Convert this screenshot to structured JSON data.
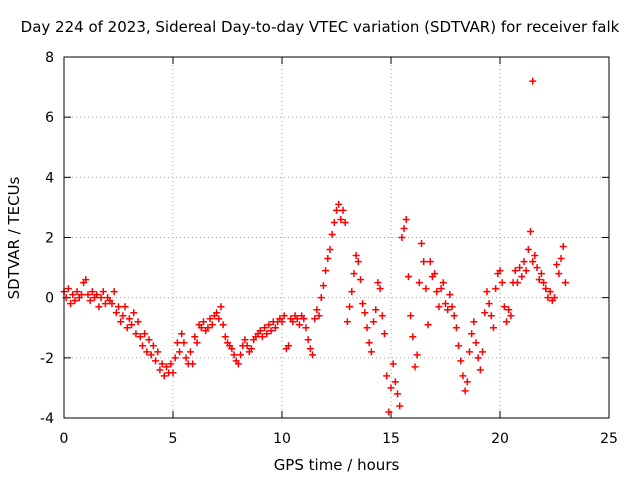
{
  "chart_data": {
    "type": "scatter",
    "title": "Day 224 of 2023, Sidereal Day-to-day VTEC variation (SDTVAR) for receiver falk",
    "xlabel": "GPS time / hours",
    "ylabel": "SDTVAR / TECUs",
    "xlim": [
      0,
      25
    ],
    "ylim": [
      -4,
      8
    ],
    "xticks": [
      0,
      5,
      10,
      15,
      20,
      25
    ],
    "yticks": [
      -4,
      -2,
      0,
      2,
      4,
      6,
      8
    ],
    "grid": true,
    "marker": "+",
    "color": "#ff0000",
    "series": [
      {
        "name": "SDTVAR",
        "points": [
          [
            0.0,
            0.2
          ],
          [
            0.1,
            0.0
          ],
          [
            0.2,
            0.3
          ],
          [
            0.3,
            -0.2
          ],
          [
            0.4,
            0.1
          ],
          [
            0.5,
            -0.1
          ],
          [
            0.6,
            0.2
          ],
          [
            0.7,
            0.0
          ],
          [
            0.8,
            0.1
          ],
          [
            0.9,
            0.5
          ],
          [
            1.0,
            0.6
          ],
          [
            1.1,
            0.1
          ],
          [
            1.2,
            -0.1
          ],
          [
            1.3,
            0.2
          ],
          [
            1.4,
            0.0
          ],
          [
            1.5,
            0.1
          ],
          [
            1.6,
            -0.3
          ],
          [
            1.7,
            0.0
          ],
          [
            1.8,
            0.2
          ],
          [
            1.9,
            -0.2
          ],
          [
            2.0,
            0.0
          ],
          [
            2.1,
            -0.1
          ],
          [
            2.2,
            -0.2
          ],
          [
            2.3,
            0.2
          ],
          [
            2.4,
            -0.5
          ],
          [
            2.5,
            -0.3
          ],
          [
            2.6,
            -0.8
          ],
          [
            2.7,
            -0.6
          ],
          [
            2.8,
            -0.3
          ],
          [
            2.9,
            -1.0
          ],
          [
            3.0,
            -0.7
          ],
          [
            3.1,
            -0.9
          ],
          [
            3.2,
            -0.5
          ],
          [
            3.3,
            -1.2
          ],
          [
            3.4,
            -0.8
          ],
          [
            3.5,
            -1.3
          ],
          [
            3.6,
            -1.6
          ],
          [
            3.7,
            -1.2
          ],
          [
            3.8,
            -1.8
          ],
          [
            3.9,
            -1.4
          ],
          [
            4.0,
            -1.9
          ],
          [
            4.1,
            -1.6
          ],
          [
            4.2,
            -2.1
          ],
          [
            4.3,
            -1.8
          ],
          [
            4.4,
            -2.4
          ],
          [
            4.5,
            -2.2
          ],
          [
            4.6,
            -2.6
          ],
          [
            4.7,
            -2.3
          ],
          [
            4.8,
            -2.5
          ],
          [
            4.9,
            -2.2
          ],
          [
            5.0,
            -2.5
          ],
          [
            5.1,
            -2.0
          ],
          [
            5.2,
            -1.5
          ],
          [
            5.3,
            -1.8
          ],
          [
            5.4,
            -1.2
          ],
          [
            5.5,
            -1.5
          ],
          [
            5.6,
            -2.0
          ],
          [
            5.7,
            -2.2
          ],
          [
            5.8,
            -1.8
          ],
          [
            5.9,
            -2.2
          ],
          [
            6.0,
            -1.3
          ],
          [
            6.1,
            -1.5
          ],
          [
            6.2,
            -0.9
          ],
          [
            6.3,
            -1.0
          ],
          [
            6.4,
            -0.8
          ],
          [
            6.5,
            -1.1
          ],
          [
            6.6,
            -1.0
          ],
          [
            6.7,
            -0.7
          ],
          [
            6.8,
            -0.9
          ],
          [
            6.9,
            -0.6
          ],
          [
            7.0,
            -0.5
          ],
          [
            7.1,
            -0.7
          ],
          [
            7.2,
            -0.3
          ],
          [
            7.3,
            -0.9
          ],
          [
            7.4,
            -1.3
          ],
          [
            7.5,
            -1.5
          ],
          [
            7.6,
            -1.6
          ],
          [
            7.7,
            -1.7
          ],
          [
            7.8,
            -1.9
          ],
          [
            7.9,
            -2.1
          ],
          [
            8.0,
            -2.2
          ],
          [
            8.1,
            -1.9
          ],
          [
            8.2,
            -1.6
          ],
          [
            8.3,
            -1.4
          ],
          [
            8.4,
            -1.6
          ],
          [
            8.5,
            -1.8
          ],
          [
            8.6,
            -1.7
          ],
          [
            8.7,
            -1.4
          ],
          [
            8.8,
            -1.3
          ],
          [
            8.9,
            -1.2
          ],
          [
            9.0,
            -1.1
          ],
          [
            9.1,
            -1.3
          ],
          [
            9.2,
            -1.0
          ],
          [
            9.3,
            -1.2
          ],
          [
            9.4,
            -0.9
          ],
          [
            9.5,
            -1.1
          ],
          [
            9.6,
            -0.8
          ],
          [
            9.7,
            -1.0
          ],
          [
            9.8,
            -0.8
          ],
          [
            9.9,
            -0.7
          ],
          [
            10.0,
            -0.8
          ],
          [
            10.1,
            -0.6
          ],
          [
            10.2,
            -1.7
          ],
          [
            10.3,
            -1.6
          ],
          [
            10.4,
            -0.7
          ],
          [
            10.5,
            -0.8
          ],
          [
            10.6,
            -0.6
          ],
          [
            10.7,
            -0.7
          ],
          [
            10.8,
            -0.9
          ],
          [
            10.9,
            -0.6
          ],
          [
            11.0,
            -0.7
          ],
          [
            11.1,
            -1.0
          ],
          [
            11.2,
            -1.4
          ],
          [
            11.3,
            -1.7
          ],
          [
            11.4,
            -1.9
          ],
          [
            11.5,
            -0.7
          ],
          [
            11.6,
            -0.4
          ],
          [
            11.7,
            -0.6
          ],
          [
            11.8,
            0.0
          ],
          [
            11.9,
            0.4
          ],
          [
            12.0,
            0.9
          ],
          [
            12.1,
            1.3
          ],
          [
            12.2,
            1.6
          ],
          [
            12.3,
            2.1
          ],
          [
            12.4,
            2.5
          ],
          [
            12.5,
            2.9
          ],
          [
            12.6,
            3.1
          ],
          [
            12.7,
            2.6
          ],
          [
            12.8,
            2.9
          ],
          [
            12.9,
            2.5
          ],
          [
            13.0,
            -0.8
          ],
          [
            13.1,
            -0.3
          ],
          [
            13.2,
            0.2
          ],
          [
            13.3,
            0.8
          ],
          [
            13.4,
            1.4
          ],
          [
            13.5,
            1.2
          ],
          [
            13.6,
            0.6
          ],
          [
            13.7,
            -0.2
          ],
          [
            13.8,
            -0.5
          ],
          [
            13.9,
            -1.0
          ],
          [
            14.0,
            -1.5
          ],
          [
            14.1,
            -1.8
          ],
          [
            14.2,
            -0.8
          ],
          [
            14.3,
            -0.4
          ],
          [
            14.4,
            0.5
          ],
          [
            14.5,
            0.3
          ],
          [
            14.6,
            -0.6
          ],
          [
            14.7,
            -1.2
          ],
          [
            14.8,
            -2.6
          ],
          [
            14.9,
            -3.8
          ],
          [
            15.0,
            -3.0
          ],
          [
            15.1,
            -2.2
          ],
          [
            15.2,
            -2.8
          ],
          [
            15.3,
            -3.2
          ],
          [
            15.4,
            -3.6
          ],
          [
            15.5,
            2.0
          ],
          [
            15.6,
            2.3
          ],
          [
            15.7,
            2.6
          ],
          [
            15.8,
            0.7
          ],
          [
            15.9,
            -0.6
          ],
          [
            16.0,
            -1.3
          ],
          [
            16.1,
            -2.3
          ],
          [
            16.2,
            -1.9
          ],
          [
            16.3,
            0.5
          ],
          [
            16.4,
            1.8
          ],
          [
            16.5,
            1.2
          ],
          [
            16.6,
            0.3
          ],
          [
            16.7,
            -0.9
          ],
          [
            16.8,
            1.2
          ],
          [
            16.9,
            0.7
          ],
          [
            17.0,
            0.8
          ],
          [
            17.1,
            0.2
          ],
          [
            17.2,
            -0.3
          ],
          [
            17.3,
            0.3
          ],
          [
            17.4,
            0.5
          ],
          [
            17.5,
            -0.2
          ],
          [
            17.6,
            -0.4
          ],
          [
            17.7,
            0.1
          ],
          [
            17.8,
            -0.3
          ],
          [
            17.9,
            -0.6
          ],
          [
            18.0,
            -1.0
          ],
          [
            18.1,
            -1.6
          ],
          [
            18.2,
            -2.1
          ],
          [
            18.3,
            -2.6
          ],
          [
            18.4,
            -3.1
          ],
          [
            18.5,
            -2.8
          ],
          [
            18.6,
            -1.8
          ],
          [
            18.7,
            -1.2
          ],
          [
            18.8,
            -0.8
          ],
          [
            18.9,
            -1.5
          ],
          [
            19.0,
            -2.0
          ],
          [
            19.1,
            -2.4
          ],
          [
            19.2,
            -1.8
          ],
          [
            19.3,
            -0.5
          ],
          [
            19.4,
            0.2
          ],
          [
            19.5,
            -0.2
          ],
          [
            19.6,
            -0.6
          ],
          [
            19.7,
            -1.0
          ],
          [
            19.8,
            0.3
          ],
          [
            19.9,
            0.8
          ],
          [
            20.0,
            0.9
          ],
          [
            20.1,
            0.5
          ],
          [
            20.2,
            -0.3
          ],
          [
            20.3,
            -0.8
          ],
          [
            20.4,
            -0.4
          ],
          [
            20.5,
            -0.6
          ],
          [
            20.6,
            0.5
          ],
          [
            20.7,
            0.9
          ],
          [
            20.8,
            0.5
          ],
          [
            20.9,
            1.0
          ],
          [
            21.0,
            0.7
          ],
          [
            21.1,
            1.2
          ],
          [
            21.2,
            0.9
          ],
          [
            21.3,
            1.6
          ],
          [
            21.4,
            2.2
          ],
          [
            21.5,
            1.2
          ],
          [
            21.6,
            1.4
          ],
          [
            21.7,
            1.0
          ],
          [
            21.8,
            0.6
          ],
          [
            21.9,
            0.8
          ],
          [
            22.0,
            0.5
          ],
          [
            22.1,
            0.3
          ],
          [
            22.2,
            0.0
          ],
          [
            22.3,
            0.2
          ],
          [
            22.4,
            -0.1
          ],
          [
            22.5,
            0.0
          ],
          [
            22.6,
            1.1
          ],
          [
            22.7,
            0.8
          ],
          [
            22.8,
            1.3
          ],
          [
            22.9,
            1.7
          ],
          [
            23.0,
            0.5
          ],
          [
            21.5,
            7.2
          ]
        ]
      }
    ]
  }
}
